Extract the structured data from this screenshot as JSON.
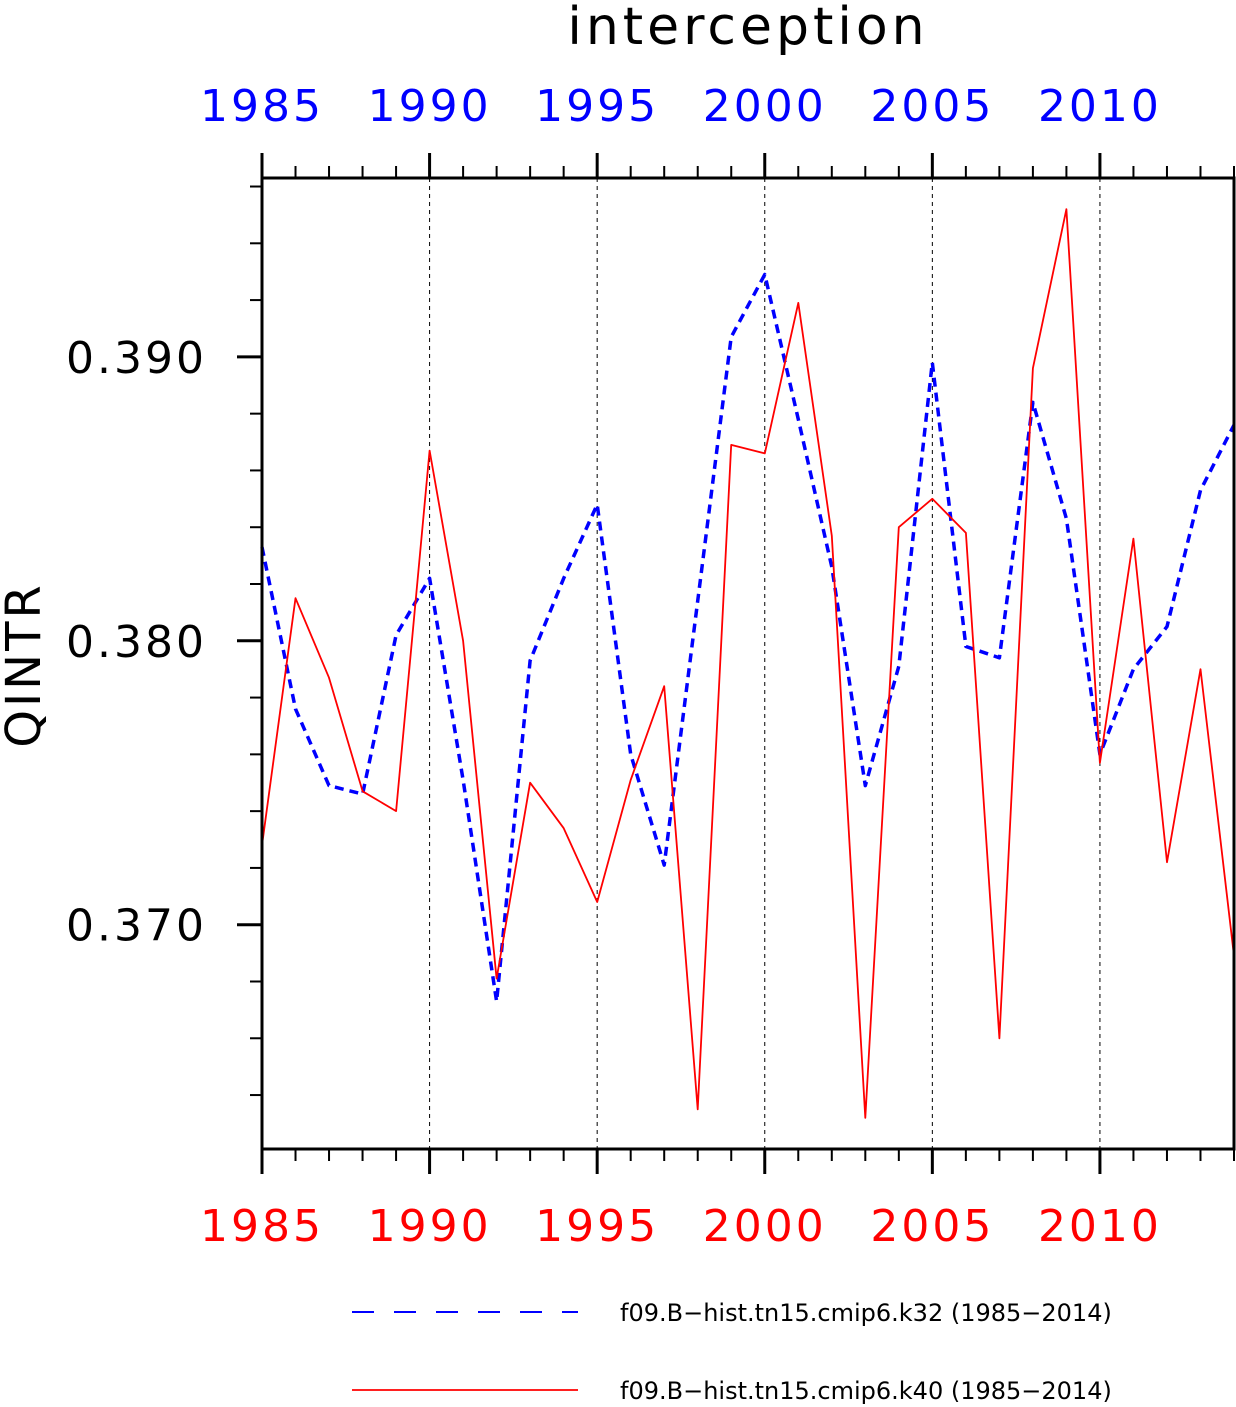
{
  "chart_data": {
    "type": "line",
    "title": "interception",
    "ylabel": "QINTR",
    "xlabel": "",
    "xlim": [
      1985,
      2014
    ],
    "ylim": [
      0.3621,
      0.3963
    ],
    "grid": "vertical dashed at major x ticks",
    "x_ticks": [
      1985,
      1990,
      1995,
      2000,
      2005,
      2010
    ],
    "x_tick_labels": [
      "1985",
      "1990",
      "1995",
      "2000",
      "2005",
      "2010"
    ],
    "y_ticks": [
      0.37,
      0.38,
      0.39
    ],
    "y_tick_labels": [
      "0.370",
      "0.380",
      "0.390"
    ],
    "x": [
      1985,
      1986,
      1987,
      1988,
      1989,
      1990,
      1991,
      1992,
      1993,
      1994,
      1995,
      1996,
      1997,
      1998,
      1999,
      2000,
      2001,
      2002,
      2003,
      2004,
      2005,
      2006,
      2007,
      2008,
      2009,
      2010,
      2011,
      2012,
      2013,
      2014
    ],
    "series": [
      {
        "name": "f09.B−hist.tn15.cmip6.k32 (1985−2014)",
        "color": "#0000ff",
        "dash": "dashed",
        "axis_color": "#0000ff",
        "values": [
          0.3833,
          0.3776,
          0.3749,
          0.3746,
          0.3802,
          0.3822,
          0.3751,
          0.3673,
          0.3793,
          0.3822,
          0.3848,
          0.376,
          0.3721,
          0.3814,
          0.3907,
          0.3929,
          0.3878,
          0.3826,
          0.3749,
          0.3791,
          0.3898,
          0.3798,
          0.3794,
          0.3884,
          0.3843,
          0.376,
          0.379,
          0.3805,
          0.3853,
          0.3876
        ]
      },
      {
        "name": "f09.B−hist.tn15.cmip6.k40 (1985−2014)",
        "color": "#ff0000",
        "dash": "solid",
        "axis_color": "#ff0000",
        "values": [
          0.3728,
          0.3815,
          0.3787,
          0.3747,
          0.374,
          0.3867,
          0.38,
          0.3681,
          0.375,
          0.3734,
          0.3708,
          0.3751,
          0.3784,
          0.3635,
          0.3869,
          0.3866,
          0.3919,
          0.3837,
          0.3632,
          0.384,
          0.385,
          0.3838,
          0.366,
          0.3896,
          0.3952,
          0.3757,
          0.3836,
          0.3722,
          0.379,
          0.3689
        ]
      }
    ],
    "legend": "bottom-center"
  }
}
